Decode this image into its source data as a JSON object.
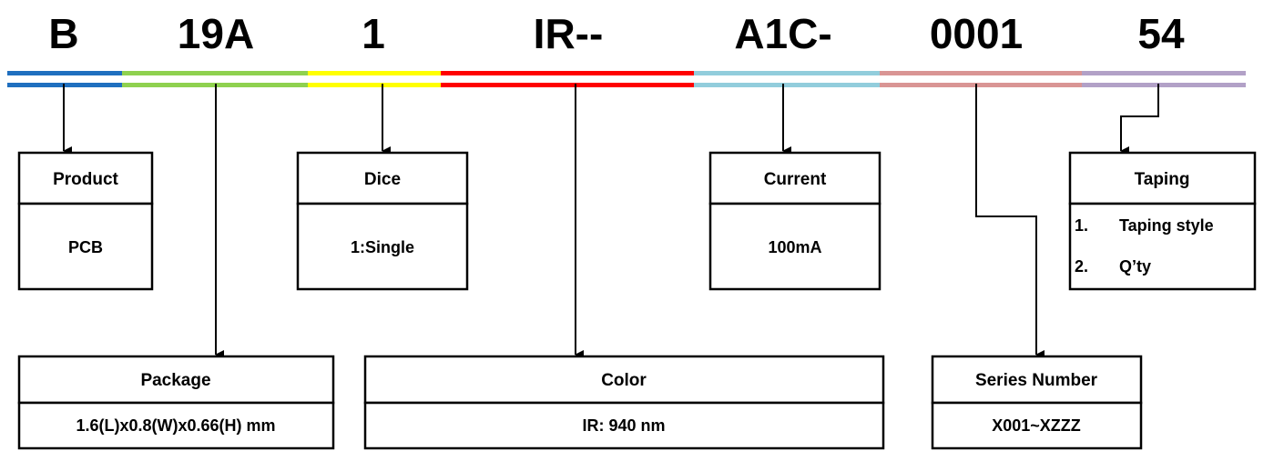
{
  "code_segments": [
    {
      "text": "B",
      "color": "#1f6fbf"
    },
    {
      "text": "19A",
      "color": "#8fd14f"
    },
    {
      "text": "1",
      "color": "#ffff00"
    },
    {
      "text": "IR--",
      "color": "#ff0000"
    },
    {
      "text": "A1C-",
      "color": "#92cddc"
    },
    {
      "text": "0001",
      "color": "#d99594"
    },
    {
      "text": "54",
      "color": "#b2a1c7"
    }
  ],
  "boxes": {
    "product": {
      "title": "Product",
      "value": "PCB"
    },
    "dice": {
      "title": "Dice",
      "value": "1:Single"
    },
    "current": {
      "title": "Current",
      "value": "100mA"
    },
    "taping": {
      "title": "Taping",
      "items": [
        {
          "num": "1.",
          "text": "Taping style"
        },
        {
          "num": "2.",
          "text": "Q’ty"
        }
      ]
    },
    "package": {
      "title": "Package",
      "value": "1.6(L)x0.8(W)x0.66(H) mm"
    },
    "color": {
      "title": "Color",
      "value": "IR: 940 nm"
    },
    "series": {
      "title": "Series Number",
      "value": "X001~XZZZ"
    }
  }
}
